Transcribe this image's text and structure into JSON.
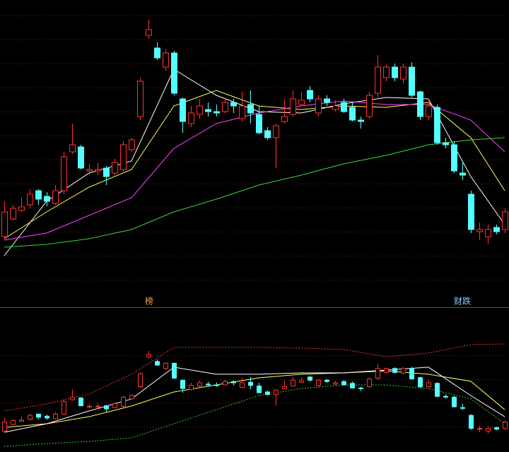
{
  "chart_data": {
    "type": "candlestick",
    "up_color": "#ff3232",
    "down_color": "#54ffff",
    "grid": true,
    "ylim": [
      0,
      390
    ],
    "yticks": [
      388,
      354,
      320,
      286,
      252,
      218,
      184,
      150,
      116,
      82,
      48,
      14
    ],
    "open": [
      75,
      100,
      112,
      120,
      140,
      132,
      122,
      140,
      195,
      202,
      168,
      168,
      172,
      165,
      170,
      198,
      245,
      360,
      342,
      315,
      335,
      270,
      235,
      248,
      255,
      252,
      252,
      265,
      242,
      262,
      248,
      225,
      215,
      238,
      248,
      262,
      282,
      250,
      270,
      255,
      265,
      258,
      240,
      245,
      278,
      300,
      315,
      298,
      315,
      280,
      245,
      258,
      208,
      205,
      165,
      135,
      82,
      75,
      88,
      85
    ],
    "high": [
      125,
      120,
      130,
      142,
      142,
      138,
      148,
      195,
      235,
      205,
      178,
      180,
      175,
      185,
      210,
      215,
      300,
      382,
      350,
      340,
      338,
      272,
      260,
      270,
      265,
      262,
      272,
      270,
      280,
      282,
      260,
      230,
      235,
      270,
      282,
      280,
      288,
      275,
      275,
      268,
      270,
      265,
      245,
      280,
      332,
      318,
      320,
      320,
      322,
      282,
      270,
      262,
      215,
      210,
      180,
      140,
      95,
      92,
      92,
      115
    ],
    "low": [
      70,
      98,
      110,
      115,
      120,
      118,
      120,
      135,
      192,
      170,
      162,
      162,
      148,
      162,
      165,
      195,
      240,
      355,
      325,
      310,
      275,
      222,
      230,
      242,
      245,
      245,
      250,
      250,
      238,
      235,
      220,
      212,
      172,
      235,
      245,
      260,
      265,
      245,
      260,
      252,
      250,
      238,
      228,
      242,
      272,
      295,
      295,
      292,
      272,
      240,
      240,
      205,
      200,
      165,
      155,
      80,
      70,
      65,
      78,
      80
    ],
    "close": [
      110,
      115,
      117,
      135,
      128,
      125,
      140,
      188,
      205,
      172,
      170,
      170,
      160,
      180,
      205,
      212,
      295,
      368,
      328,
      335,
      278,
      238,
      250,
      260,
      252,
      250,
      265,
      260,
      260,
      250,
      222,
      215,
      232,
      245,
      270,
      268,
      270,
      270,
      265,
      260,
      252,
      240,
      238,
      275,
      315,
      315,
      300,
      315,
      275,
      245,
      260,
      208,
      205,
      168,
      162,
      85,
      85,
      85,
      82,
      110
    ],
    "series": [
      {
        "color": "#ffffff",
        "x": [
          0,
          5,
          10,
          15,
          20,
          25,
          30,
          35,
          40,
          45,
          50,
          55,
          59
        ],
        "values": [
          48,
          125,
          165,
          182,
          312,
          275,
          252,
          250,
          263,
          272,
          270,
          160,
          92
        ]
      },
      {
        "color": "#ffff55",
        "x": [
          0,
          5,
          10,
          15,
          20,
          25,
          30,
          35,
          40,
          45,
          50,
          55,
          59
        ],
        "values": [
          72,
          110,
          145,
          170,
          260,
          282,
          260,
          255,
          260,
          258,
          265,
          215,
          140
        ]
      },
      {
        "color": "#ff44ff",
        "x": [
          0,
          5,
          10,
          15,
          20,
          25,
          30,
          35,
          40,
          45,
          50,
          55,
          59
        ],
        "values": [
          70,
          80,
          105,
          130,
          200,
          235,
          250,
          260,
          267,
          262,
          262,
          240,
          195
        ]
      },
      {
        "color": "#33dd33",
        "x": [
          0,
          5,
          10,
          15,
          20,
          25,
          30,
          35,
          40,
          45,
          50,
          55,
          59
        ],
        "values": [
          60,
          64,
          72,
          85,
          110,
          128,
          148,
          162,
          178,
          190,
          205,
          212,
          215
        ]
      }
    ],
    "annotations": [
      "榜",
      "财跌"
    ],
    "lower_panel": {
      "ylim": [
        0,
        420
      ],
      "yticks": [
        366,
        274,
        184,
        92
      ],
      "series": [
        {
          "color": "#ff3232",
          "dashed": true,
          "x": [
            0,
            5,
            10,
            15,
            20,
            25,
            30,
            35,
            40,
            45,
            50,
            55,
            59
          ],
          "values": [
            152,
            179,
            217,
            293,
            396,
            396,
            396,
            393,
            388,
            360,
            374,
            407,
            409
          ]
        },
        {
          "color": "#33cc33",
          "dashed": true,
          "x": [
            0,
            5,
            10,
            15,
            20,
            25,
            30,
            35,
            40,
            45,
            50,
            55,
            59
          ],
          "values": [
            16,
            27,
            35,
            49,
            103,
            157,
            211,
            238,
            252,
            252,
            238,
            198,
            103
          ]
        },
        {
          "color": "#ffff55",
          "x": [
            0,
            5,
            10,
            15,
            20,
            25,
            30,
            35,
            40,
            45,
            50,
            55,
            59
          ],
          "values": [
            89,
            103,
            130,
            171,
            225,
            252,
            279,
            293,
            298,
            306,
            293,
            266,
            157
          ]
        },
        {
          "color": "#ffffff",
          "x": [
            0,
            5,
            10,
            15,
            20,
            25,
            30,
            35,
            40,
            45,
            50,
            55,
            59
          ],
          "values": [
            70,
            103,
            152,
            198,
            320,
            293,
            293,
            298,
            298,
            309,
            320,
            211,
            130
          ]
        }
      ]
    }
  }
}
